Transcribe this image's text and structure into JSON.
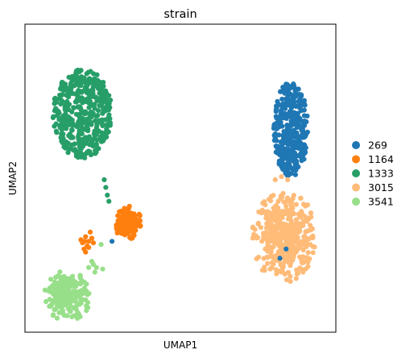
{
  "chart_data": {
    "type": "scatter",
    "title": "strain",
    "xlabel": "UMAP1",
    "ylabel": "UMAP2",
    "xticks": [],
    "yticks": [],
    "grid": false,
    "legend": {
      "placement": "right"
    },
    "series": [
      {
        "name": "269",
        "color": "#1f77b4",
        "n": 360,
        "center": [
          8.55,
          6.6
        ],
        "spread": [
          0.55,
          1.55
        ],
        "shape": "ellipse"
      },
      {
        "name": "1164",
        "color": "#ff7f0e",
        "n": 150,
        "center": [
          3.3,
          3.55
        ],
        "spread": [
          0.45,
          0.55
        ],
        "shape": "blob",
        "extra_points": [
          [
            1.85,
            2.9
          ],
          [
            1.95,
            3.1
          ],
          [
            2.05,
            2.95
          ],
          [
            1.9,
            2.7
          ],
          [
            2.1,
            3.25
          ],
          [
            2.0,
            2.8
          ],
          [
            1.8,
            3.0
          ],
          [
            2.15,
            3.05
          ],
          [
            1.95,
            2.6
          ],
          [
            2.2,
            2.9
          ],
          [
            2.05,
            2.75
          ],
          [
            1.92,
            2.95
          ]
        ]
      },
      {
        "name": "1333",
        "color": "#279e68",
        "n": 430,
        "center": [
          1.85,
          7.1
        ],
        "spread": [
          0.95,
          1.45
        ],
        "shape": "ellipse",
        "extra_points": [
          [
            2.55,
            4.95
          ],
          [
            2.6,
            4.7
          ],
          [
            2.65,
            4.45
          ],
          [
            2.7,
            4.25
          ]
        ]
      },
      {
        "name": "3015",
        "color": "#ffbb78",
        "n": 420,
        "center": [
          8.35,
          3.1
        ],
        "spread": [
          1.05,
          1.5
        ],
        "shape": "blob",
        "extra_points": [
          [
            8.25,
            5.05
          ],
          [
            8.45,
            4.95
          ],
          [
            8.05,
            4.95
          ]
        ]
      },
      {
        "name": "3541",
        "color": "#98df8a",
        "n": 210,
        "center": [
          1.35,
          1.15
        ],
        "spread": [
          0.75,
          0.85
        ],
        "shape": "blob",
        "extra_points": [
          [
            2.05,
            2.1
          ],
          [
            2.15,
            2.3
          ],
          [
            2.25,
            1.95
          ],
          [
            2.2,
            2.2
          ],
          [
            2.3,
            2.1
          ],
          [
            2.5,
            2.05
          ]
        ]
      }
    ],
    "background_points": [
      [
        2.45,
        2.85
      ],
      [
        2.8,
        2.95
      ],
      [
        8.4,
        2.7
      ],
      [
        8.2,
        2.4
      ]
    ]
  }
}
